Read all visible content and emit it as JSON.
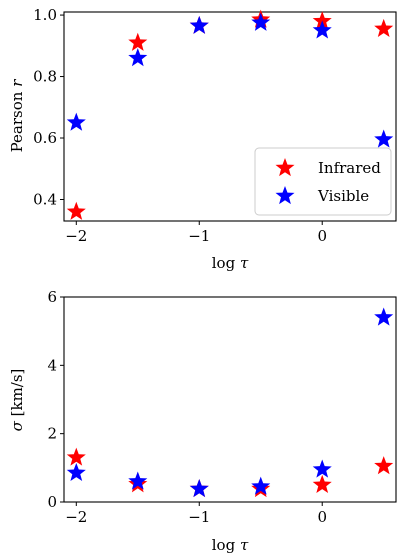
{
  "chart_data": [
    {
      "type": "scatter",
      "marker": "star",
      "xlabel": "log τ",
      "ylabel": "Pearson r",
      "xlim": [
        -2.1,
        0.6
      ],
      "ylim": [
        0.33,
        1.01
      ],
      "xticks": [
        -2,
        -1,
        0
      ],
      "xtick_labels": [
        "−2",
        "−1",
        "0"
      ],
      "yticks": [
        0.4,
        0.6,
        0.8,
        1.0
      ],
      "ytick_labels": [
        "0.4",
        "0.6",
        "0.8",
        "1.0"
      ],
      "legend": "bottom-right",
      "series": [
        {
          "name": "Infrared",
          "color": "#ff0000",
          "x": [
            -2,
            -1.5,
            -1,
            -0.5,
            0,
            0.5
          ],
          "y": [
            0.36,
            0.91,
            0.965,
            0.985,
            0.98,
            0.955
          ]
        },
        {
          "name": "Visible",
          "color": "#0000ff",
          "x": [
            -2,
            -1.5,
            -1,
            -0.5,
            0,
            0.5
          ],
          "y": [
            0.65,
            0.86,
            0.965,
            0.975,
            0.95,
            0.595
          ]
        }
      ]
    },
    {
      "type": "scatter",
      "marker": "star",
      "xlabel": "log τ",
      "ylabel": "σ [km/s]",
      "xlim": [
        -2.1,
        0.6
      ],
      "ylim": [
        0,
        6
      ],
      "xticks": [
        -2,
        -1,
        0
      ],
      "xtick_labels": [
        "−2",
        "−1",
        "0"
      ],
      "yticks": [
        0,
        2,
        4,
        6
      ],
      "ytick_labels": [
        "0",
        "2",
        "4",
        "6"
      ],
      "series": [
        {
          "name": "Infrared",
          "color": "#ff0000",
          "x": [
            -2,
            -1.5,
            -1,
            -0.5,
            0,
            0.5
          ],
          "y": [
            1.3,
            0.52,
            0.38,
            0.38,
            0.5,
            1.05
          ]
        },
        {
          "name": "Visible",
          "color": "#0000ff",
          "x": [
            -2,
            -1.5,
            -1,
            -0.5,
            0,
            0.5
          ],
          "y": [
            0.85,
            0.6,
            0.38,
            0.45,
            0.95,
            5.4
          ]
        }
      ]
    }
  ]
}
